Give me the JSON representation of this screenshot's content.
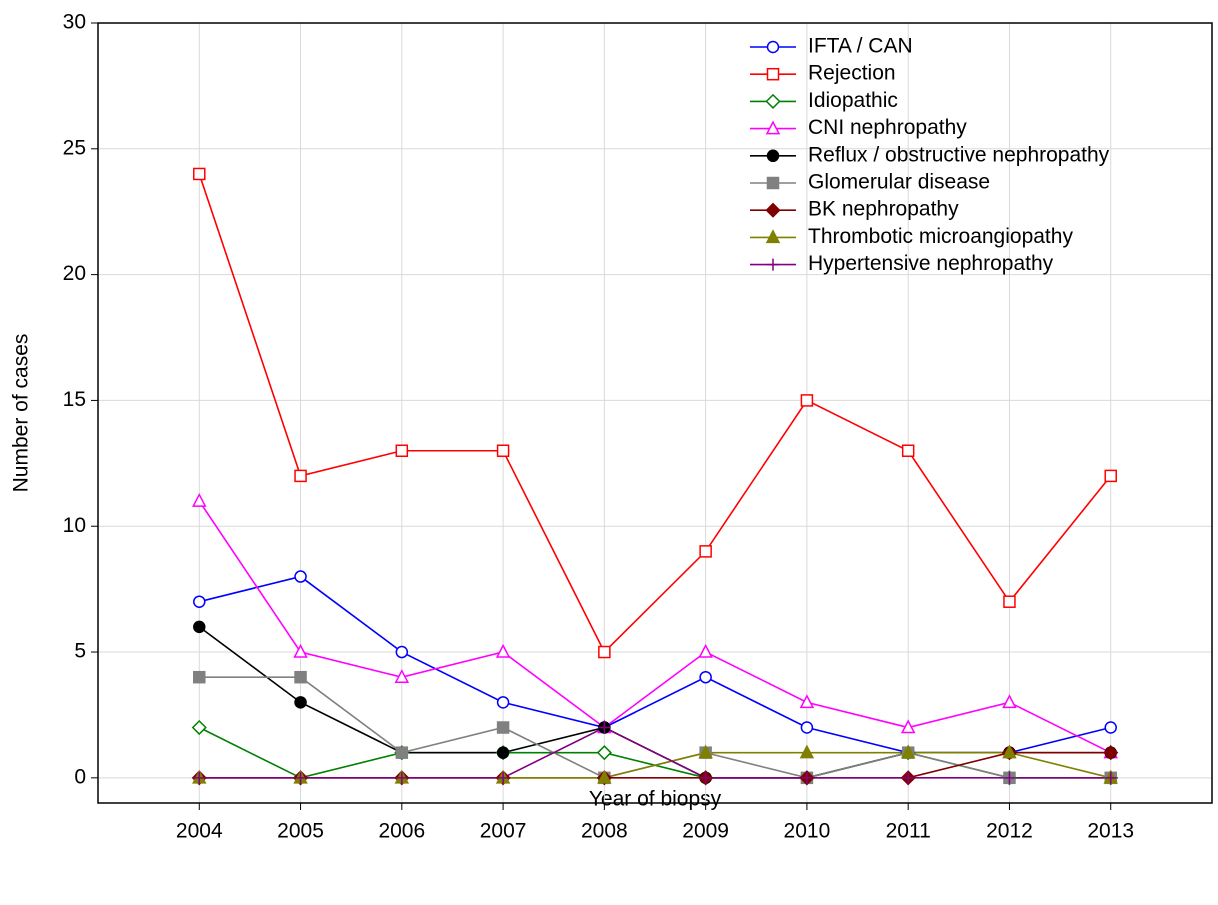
{
  "chart_data": {
    "type": "line",
    "x_label": "Year of biopsy",
    "y_label": "Number of cases",
    "x": [
      2004,
      2005,
      2006,
      2007,
      2008,
      2009,
      2010,
      2011,
      2012,
      2013
    ],
    "xlim": [
      2003,
      2014
    ],
    "xticks": [
      2004,
      2005,
      2006,
      2007,
      2008,
      2009,
      2010,
      2011,
      2012,
      2013
    ],
    "ylim": [
      -1,
      30
    ],
    "yticks": [
      0,
      5,
      10,
      15,
      20,
      25,
      30
    ],
    "grid": true,
    "legend": "upper right",
    "series": [
      {
        "name": "IFTA / CAN",
        "color": "#0000ff",
        "marker": "circle-open",
        "values": [
          7,
          8,
          5,
          3,
          2,
          4,
          2,
          1,
          1,
          2
        ]
      },
      {
        "name": "Rejection",
        "color": "#ff0000",
        "marker": "square-open",
        "values": [
          24,
          12,
          13,
          13,
          5,
          9,
          15,
          13,
          7,
          12
        ]
      },
      {
        "name": "Idiopathic",
        "color": "#008000",
        "marker": "diamond-open",
        "values": [
          2,
          0,
          1,
          1,
          1,
          0,
          0,
          1,
          0,
          0
        ]
      },
      {
        "name": "CNI nephropathy",
        "color": "#ff00ff",
        "marker": "triangle-open",
        "values": [
          11,
          5,
          4,
          5,
          2,
          5,
          3,
          2,
          3,
          1
        ]
      },
      {
        "name": "Reflux / obstructive nephropathy",
        "color": "#000000",
        "marker": "circle",
        "values": [
          6,
          3,
          1,
          1,
          2,
          0,
          0,
          1,
          1,
          1
        ]
      },
      {
        "name": "Glomerular disease",
        "color": "#808080",
        "marker": "square",
        "values": [
          4,
          4,
          1,
          2,
          0,
          1,
          0,
          1,
          0,
          0
        ]
      },
      {
        "name": "BK nephropathy",
        "color": "#800000",
        "marker": "diamond",
        "values": [
          0,
          0,
          0,
          0,
          0,
          0,
          0,
          0,
          1,
          1
        ]
      },
      {
        "name": "Thrombotic microangiopathy",
        "color": "#808000",
        "marker": "triangle",
        "values": [
          0,
          0,
          0,
          0,
          0,
          1,
          1,
          1,
          1,
          0
        ]
      },
      {
        "name": "Hypertensive nephropathy",
        "color": "#800080",
        "marker": "plus",
        "values": [
          0,
          0,
          0,
          0,
          2,
          0,
          0,
          0,
          0,
          0
        ]
      }
    ]
  }
}
